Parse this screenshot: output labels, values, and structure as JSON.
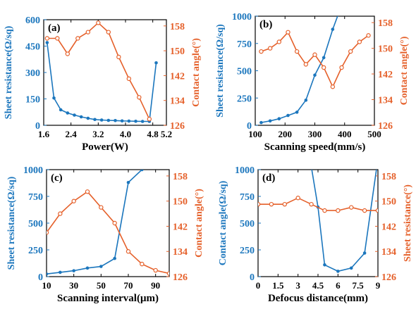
{
  "colors": {
    "left": "#1b76bd",
    "right": "#e5602a",
    "frame": "#000000"
  },
  "chart_data": [
    {
      "panel_label": "(a)",
      "type": "line",
      "xlabel": "Power(W)",
      "xticks": [
        "1.6",
        "2.4",
        "3.2",
        "4.0",
        "4.8",
        "5.2"
      ],
      "xtick_values": [
        1.6,
        2.4,
        3.2,
        4.0,
        4.8,
        5.2
      ],
      "xlim": [
        1.6,
        5.2
      ],
      "left_axis": {
        "label": "Sheet resistance(Ω/sq)",
        "ylim": [
          0,
          600
        ],
        "ticks": [
          "0",
          "150",
          "300",
          "450",
          "600"
        ],
        "tick_values": [
          0,
          150,
          300,
          450,
          600
        ]
      },
      "right_axis": {
        "label": "Contact angle(°)",
        "ylim": [
          126,
          160
        ],
        "ticks": [
          "126",
          "134",
          "142",
          "150",
          "158"
        ],
        "tick_values": [
          126,
          134,
          142,
          150,
          158
        ]
      },
      "series": [
        {
          "axis": "left",
          "x": [
            1.7,
            1.9,
            2.1,
            2.3,
            2.5,
            2.7,
            2.9,
            3.1,
            3.3,
            3.5,
            3.7,
            3.9,
            4.1,
            4.3,
            4.5,
            4.7,
            4.9
          ],
          "y": [
            470,
            155,
            88,
            70,
            58,
            48,
            40,
            33,
            30,
            28,
            27,
            25,
            24,
            23,
            22,
            22,
            355
          ]
        },
        {
          "axis": "right",
          "x": [
            1.7,
            2.0,
            2.3,
            2.6,
            2.9,
            3.2,
            3.5,
            3.8,
            4.1,
            4.4,
            4.7
          ],
          "y": [
            154,
            154,
            149,
            154,
            156,
            159,
            156,
            148,
            141,
            135,
            128
          ]
        }
      ]
    },
    {
      "panel_label": "(b)",
      "type": "line",
      "xlabel": "Scanning speed(mm/s)",
      "xticks": [
        "100",
        "200",
        "300",
        "400",
        "500"
      ],
      "xtick_values": [
        100,
        200,
        300,
        400,
        500
      ],
      "xlim": [
        100,
        500
      ],
      "left_axis": {
        "label": "Sheet resistance(Ω/sq)",
        "ylim": [
          0,
          1000
        ],
        "ticks": [
          "0",
          "250",
          "500",
          "750",
          "1000"
        ],
        "tick_values": [
          0,
          250,
          500,
          750,
          1000
        ]
      },
      "right_axis": {
        "label": "Contact angle(°)",
        "ylim": [
          126,
          160
        ],
        "ticks": [
          "126",
          "134",
          "142",
          "150",
          "158"
        ],
        "tick_values": [
          126,
          134,
          142,
          150,
          158
        ]
      },
      "series": [
        {
          "axis": "left",
          "x": [
            120,
            150,
            180,
            210,
            240,
            270,
            300,
            330,
            360,
            390
          ],
          "y": [
            25,
            40,
            60,
            90,
            120,
            230,
            460,
            620,
            880,
            1100
          ]
        },
        {
          "axis": "right",
          "x": [
            120,
            150,
            180,
            210,
            240,
            270,
            300,
            330,
            360,
            390,
            420,
            450,
            480
          ],
          "y": [
            149,
            150,
            152,
            155,
            149,
            145,
            148,
            144,
            138,
            144,
            149,
            152,
            154
          ]
        }
      ]
    },
    {
      "panel_label": "(c)",
      "type": "line",
      "xlabel": "Scanning interval(μm)",
      "xticks": [
        "10",
        "30",
        "50",
        "70",
        "90"
      ],
      "xtick_values": [
        10,
        30,
        50,
        70,
        90
      ],
      "xlim": [
        10,
        100
      ],
      "left_axis": {
        "label": "Sheet resistance(Ω/sq)",
        "ylim": [
          0,
          1000
        ],
        "ticks": [
          "0",
          "250",
          "500",
          "750",
          "1000"
        ],
        "tick_values": [
          0,
          250,
          500,
          750,
          1000
        ]
      },
      "right_axis": {
        "label": "Contact angle(°)",
        "ylim": [
          126,
          160
        ],
        "ticks": [
          "126",
          "134",
          "142",
          "150",
          "158"
        ],
        "tick_values": [
          126,
          134,
          142,
          150,
          158
        ]
      },
      "series": [
        {
          "axis": "left",
          "x": [
            10,
            20,
            30,
            40,
            50,
            60,
            70,
            80
          ],
          "y": [
            25,
            40,
            55,
            80,
            95,
            170,
            880,
            1000
          ]
        },
        {
          "axis": "right",
          "x": [
            10,
            20,
            30,
            40,
            50,
            60,
            70,
            80,
            90,
            100
          ],
          "y": [
            140,
            146,
            150,
            153,
            148,
            143,
            134,
            130,
            128,
            127
          ]
        }
      ]
    },
    {
      "panel_label": "(d)",
      "type": "line",
      "xlabel": "Defocus distance(mm)",
      "xticks": [
        "0",
        "1.5",
        "3",
        "4.5",
        "6",
        "7.5",
        "9"
      ],
      "xtick_values": [
        0,
        1.5,
        3,
        4.5,
        6,
        7.5,
        9
      ],
      "xlim": [
        0,
        9
      ],
      "left_axis": {
        "label": "Contact angle(Ω/sq)",
        "ylim": [
          0,
          1000
        ],
        "ticks": [
          "0",
          "250",
          "500",
          "750",
          "1000"
        ],
        "tick_values": [
          0,
          250,
          500,
          750,
          1000
        ]
      },
      "right_axis": {
        "label": "Sheet resistance(°)",
        "ylim": [
          126,
          160
        ],
        "ticks": [
          "126",
          "134",
          "142",
          "150",
          "158"
        ],
        "tick_values": [
          126,
          134,
          142,
          150,
          158
        ]
      },
      "series": [
        {
          "axis": "left",
          "x": [
            3.9,
            4.5,
            5.0,
            6.0,
            7.0,
            8.0,
            9.0
          ],
          "y": [
            1100,
            650,
            110,
            50,
            80,
            220,
            1100
          ]
        },
        {
          "axis": "right",
          "x": [
            0,
            1,
            2,
            3,
            4,
            5,
            6,
            7,
            8,
            9
          ],
          "y": [
            149,
            149,
            149,
            151,
            149,
            147,
            147,
            148,
            147,
            147
          ]
        }
      ]
    }
  ]
}
